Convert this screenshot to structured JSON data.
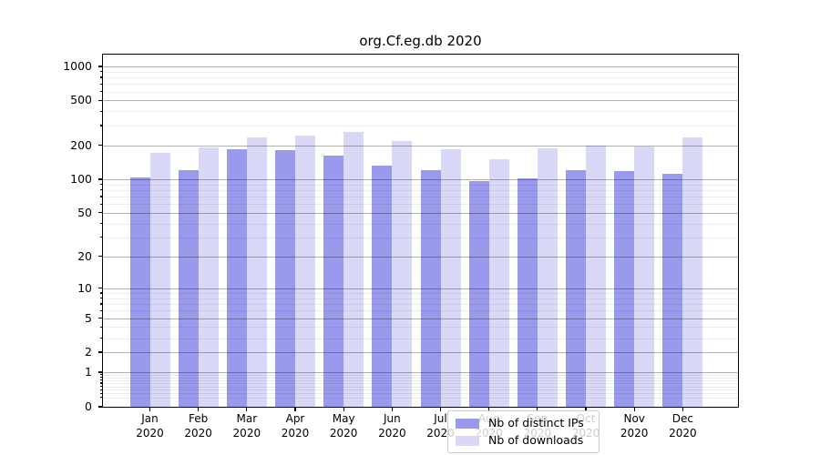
{
  "title": "org.Cf.eg.db 2020",
  "chart_data": {
    "type": "bar",
    "title": "org.Cf.eg.db 2020",
    "categories": [
      "Jan",
      "Feb",
      "Mar",
      "Apr",
      "May",
      "Jun",
      "Jul",
      "Aug",
      "Sep",
      "Oct",
      "Nov",
      "Dec"
    ],
    "year_label": "2020",
    "series": [
      {
        "name": "Nb of distinct IPs",
        "color": "#9a9aec",
        "values": [
          104,
          120,
          186,
          180,
          163,
          133,
          121,
          97,
          101,
          120,
          118,
          112
        ]
      },
      {
        "name": "Nb of downloads",
        "color": "#d9d9f7",
        "values": [
          170,
          192,
          237,
          246,
          262,
          218,
          186,
          150,
          190,
          198,
          197,
          237
        ]
      }
    ],
    "xlabel": "",
    "ylabel": "",
    "y_scale": "log10(1+x)",
    "y_ticks": [
      1000,
      500,
      200,
      100,
      50,
      20,
      10,
      5,
      2,
      1,
      0
    ],
    "ylim": [
      0,
      1290
    ],
    "grid": true,
    "legend_position": "lower center",
    "colors": {
      "major_grid": "rgba(0,0,0,0.30)",
      "minor_grid": "rgba(0,0,0,0.07)",
      "axis": "#000000",
      "legend_border": "#cccccc",
      "background": "#ffffff"
    }
  }
}
